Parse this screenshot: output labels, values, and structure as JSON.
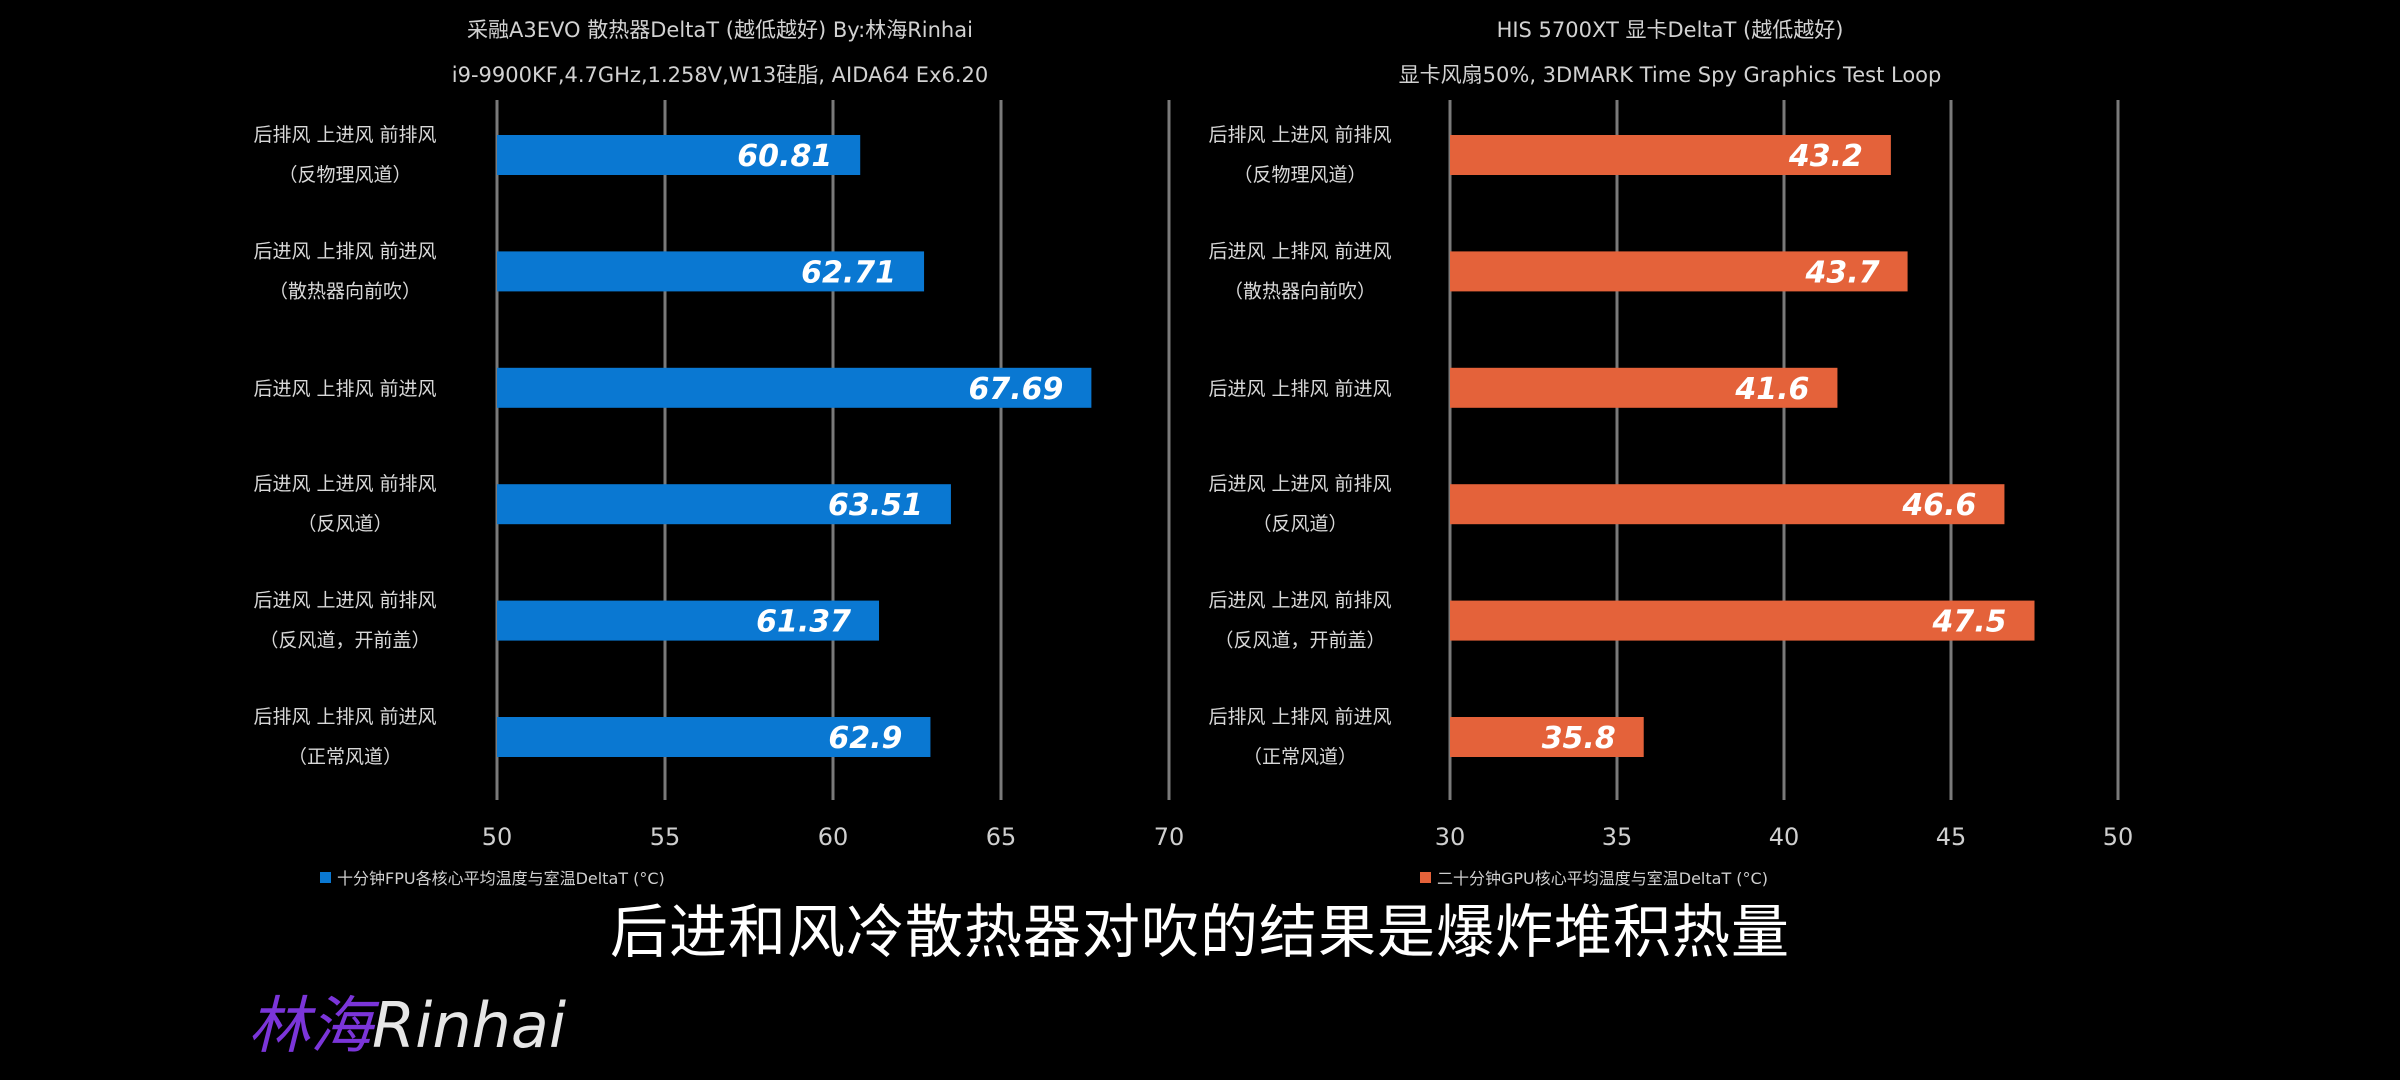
{
  "chart_data": [
    {
      "type": "bar",
      "orientation": "horizontal",
      "title": "采融A3EVO 散热器DeltaT (越低越好) By:林海Rinhai",
      "subtitle": "i9-9900KF,4.7GHz,1.258V,W13硅脂, AIDA64 Ex6.20",
      "categories": [
        [
          "后排风 上进风 前排风",
          "（反物理风道）"
        ],
        [
          "后进风 上排风 前进风",
          "（散热器向前吹）"
        ],
        [
          "后进风 上排风 前进风"
        ],
        [
          "后进风 上进风 前排风",
          "（反风道）"
        ],
        [
          "后进风 上进风 前排风",
          "（反风道，开前盖）"
        ],
        [
          "后排风 上排风 前进风",
          "（正常风道）"
        ]
      ],
      "series": [
        {
          "name": "十分钟FPU各核心平均温度与室温DeltaT (°C)",
          "color": "#0a78d2",
          "values": [
            60.81,
            62.71,
            67.69,
            63.51,
            61.37,
            62.9
          ]
        }
      ],
      "value_labels": [
        "60.81",
        "62.71",
        "67.69",
        "63.51",
        "61.37",
        "62.9"
      ],
      "xlim": [
        50,
        70
      ],
      "ticks": [
        50,
        55,
        60,
        65,
        70
      ],
      "grid": true,
      "legend": "bottom-left"
    },
    {
      "type": "bar",
      "orientation": "horizontal",
      "title": "HIS 5700XT 显卡DeltaT (越低越好)",
      "subtitle": "显卡风扇50%, 3DMARK Time Spy Graphics Test Loop",
      "categories": [
        [
          "后排风 上进风 前排风",
          "（反物理风道）"
        ],
        [
          "后进风 上排风 前进风",
          "（散热器向前吹）"
        ],
        [
          "后进风 上排风 前进风"
        ],
        [
          "后进风 上进风 前排风",
          "（反风道）"
        ],
        [
          "后进风 上进风 前排风",
          "（反风道，开前盖）"
        ],
        [
          "后排风 上排风 前进风",
          "（正常风道）"
        ]
      ],
      "series": [
        {
          "name": "二十分钟GPU核心平均温度与室温DeltaT (°C)",
          "color": "#e4623a",
          "values": [
            43.2,
            43.7,
            41.6,
            46.6,
            47.5,
            35.8
          ]
        }
      ],
      "value_labels": [
        "43.2",
        "43.7",
        "41.6",
        "46.6",
        "47.5",
        "35.8"
      ],
      "xlim": [
        30,
        50
      ],
      "ticks": [
        30,
        35,
        40,
        45,
        50
      ],
      "grid": true,
      "legend": "bottom-left"
    }
  ],
  "caption": "后进和风冷散热器对吹的结果是爆炸堆积热量",
  "watermark": {
    "cn": "林海",
    "en": "Rinhai"
  }
}
